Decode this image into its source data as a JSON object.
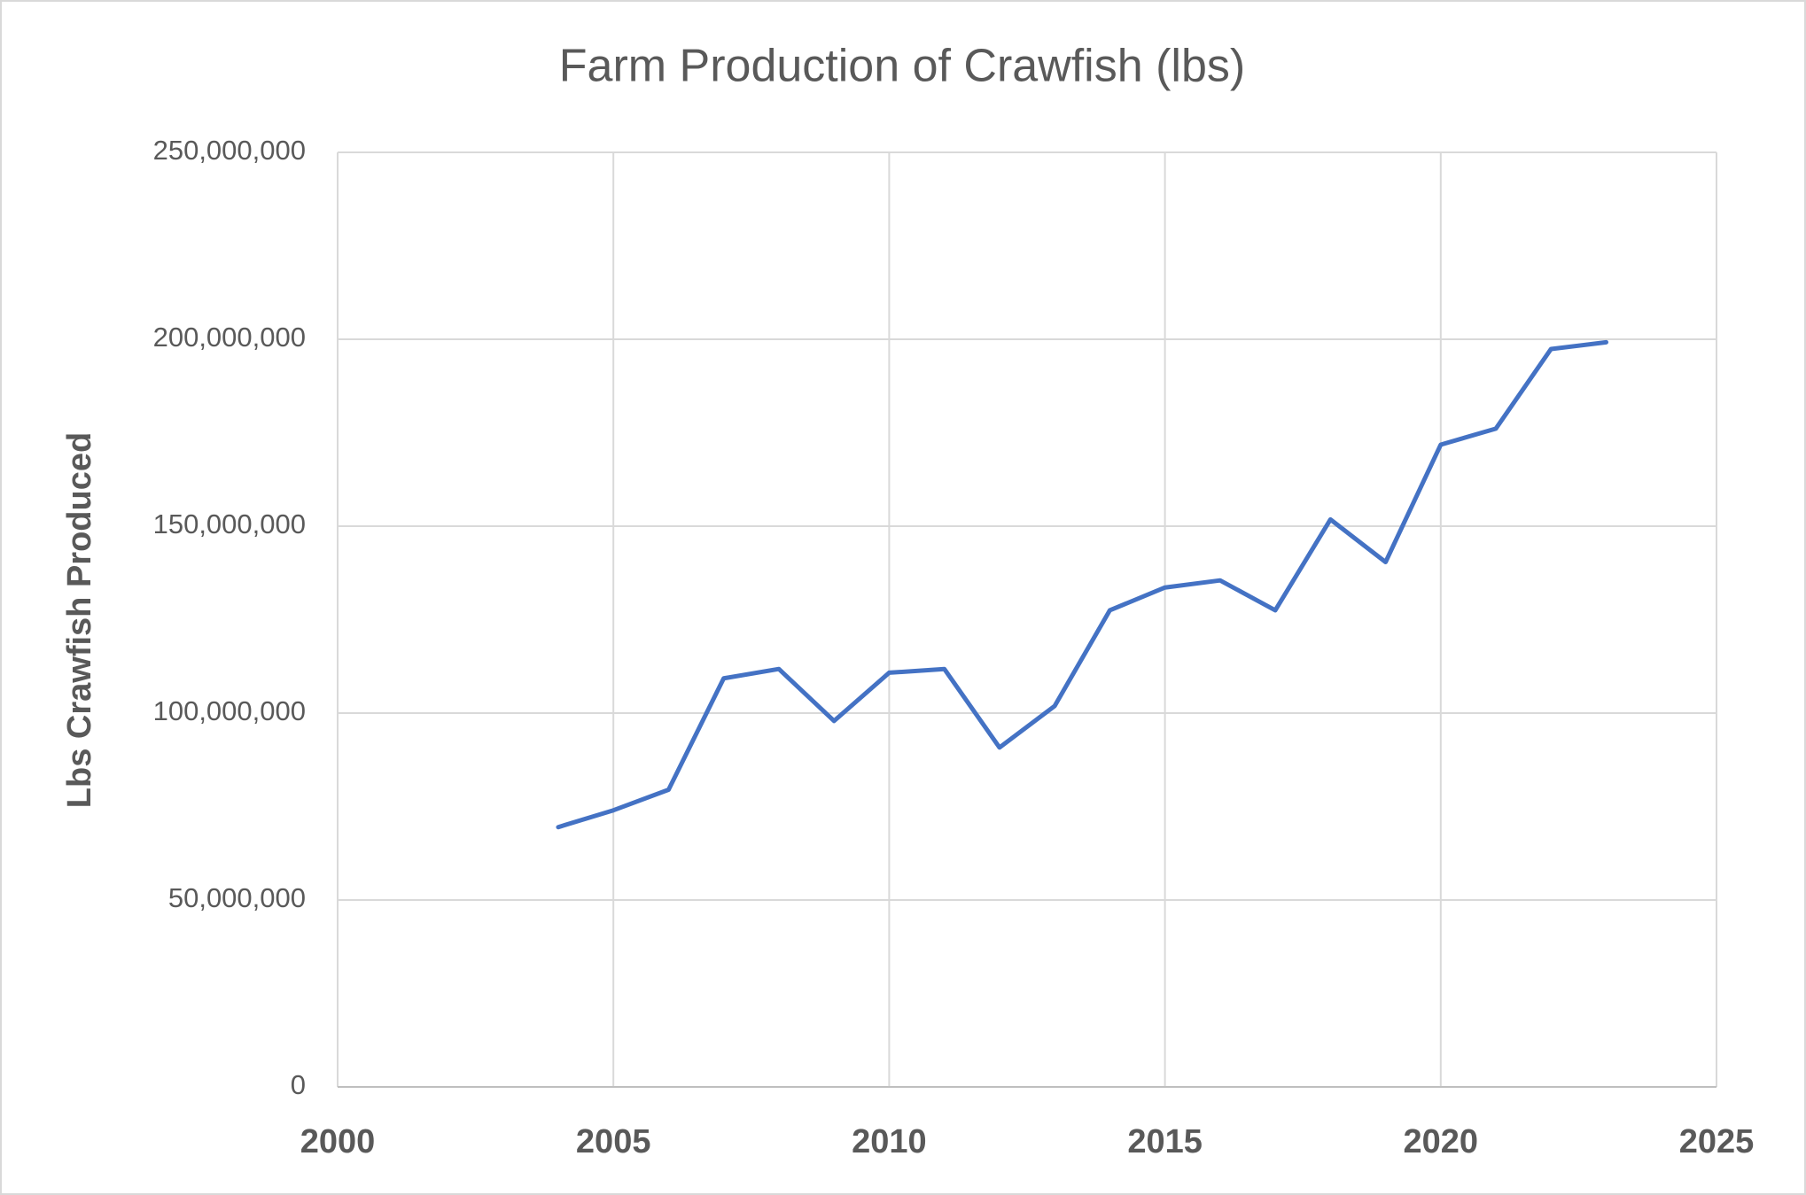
{
  "chart_data": {
    "type": "line",
    "title": "Farm Production of Crawfish (lbs)",
    "y_label": "Lbs Crawfish Produced",
    "x": [
      2004,
      2005,
      2006,
      2007,
      2008,
      2009,
      2010,
      2011,
      2012,
      2013,
      2014,
      2015,
      2016,
      2017,
      2018,
      2019,
      2020,
      2021,
      2022,
      2023
    ],
    "values": [
      69500000,
      74000000,
      79500000,
      109300000,
      111800000,
      97900000,
      110800000,
      111800000,
      90800000,
      101900000,
      127500000,
      133600000,
      135500000,
      127500000,
      151800000,
      140400000,
      171800000,
      176100000,
      197400000,
      199200000
    ],
    "color": "#4472c4",
    "xlim": [
      2000,
      2025
    ],
    "xticks": [
      2000,
      2005,
      2010,
      2015,
      2020,
      2025
    ],
    "ylim": [
      0,
      250000000
    ],
    "yticks": [
      0,
      {
        "value": 50000000,
        "label": "50,000,000"
      },
      {
        "value": 100000000,
        "label": "100,000,000"
      },
      {
        "value": 150000000,
        "label": "150,000,000"
      },
      {
        "value": 200000000,
        "label": "200,000,000"
      },
      {
        "value": 250000000,
        "label": "250,000,000"
      }
    ],
    "grid": true
  }
}
